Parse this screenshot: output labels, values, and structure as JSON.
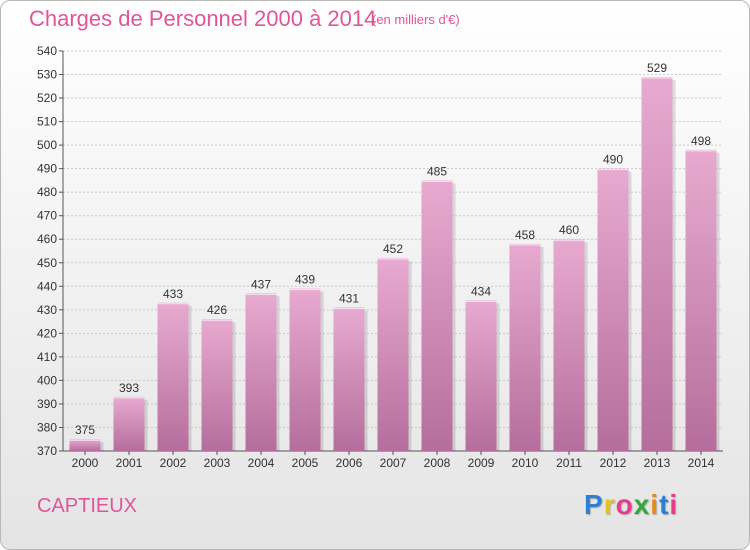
{
  "header": {
    "title": "Charges de Personnel 2000 à 2014",
    "unit_note": "(en milliers d'€)"
  },
  "footer": {
    "commune": "CAPTIEUX",
    "logo_letters": [
      "P",
      "r",
      "o",
      "x",
      "i",
      "t",
      "i"
    ],
    "logo_colors": [
      "#2e7fd1",
      "#e8c21a",
      "#e63c8b",
      "#3aa53a",
      "#e8891a",
      "#2e7fd1",
      "#e63c8b"
    ]
  },
  "colors": {
    "bar_top": "#e8aad0",
    "bar_bottom": "#b56e9c",
    "grid": "#c8c8c8"
  },
  "chart_data": {
    "type": "bar",
    "title": "Charges de Personnel 2000 à 2014",
    "subtitle": "(en milliers d'€)",
    "categories": [
      "2000",
      "2001",
      "2002",
      "2003",
      "2004",
      "2005",
      "2006",
      "2007",
      "2008",
      "2009",
      "2010",
      "2011",
      "2012",
      "2013",
      "2014"
    ],
    "values": [
      375,
      393,
      433,
      426,
      437,
      439,
      431,
      452,
      485,
      434,
      458,
      460,
      490,
      529,
      498
    ],
    "ylim": [
      370,
      540
    ],
    "yticks": [
      "370",
      "380",
      "390",
      "400",
      "410",
      "420",
      "430",
      "440",
      "450",
      "460",
      "470",
      "480",
      "490",
      "500",
      "510",
      "520",
      "530",
      "540"
    ],
    "grid": true,
    "xlabel": "",
    "ylabel": ""
  }
}
